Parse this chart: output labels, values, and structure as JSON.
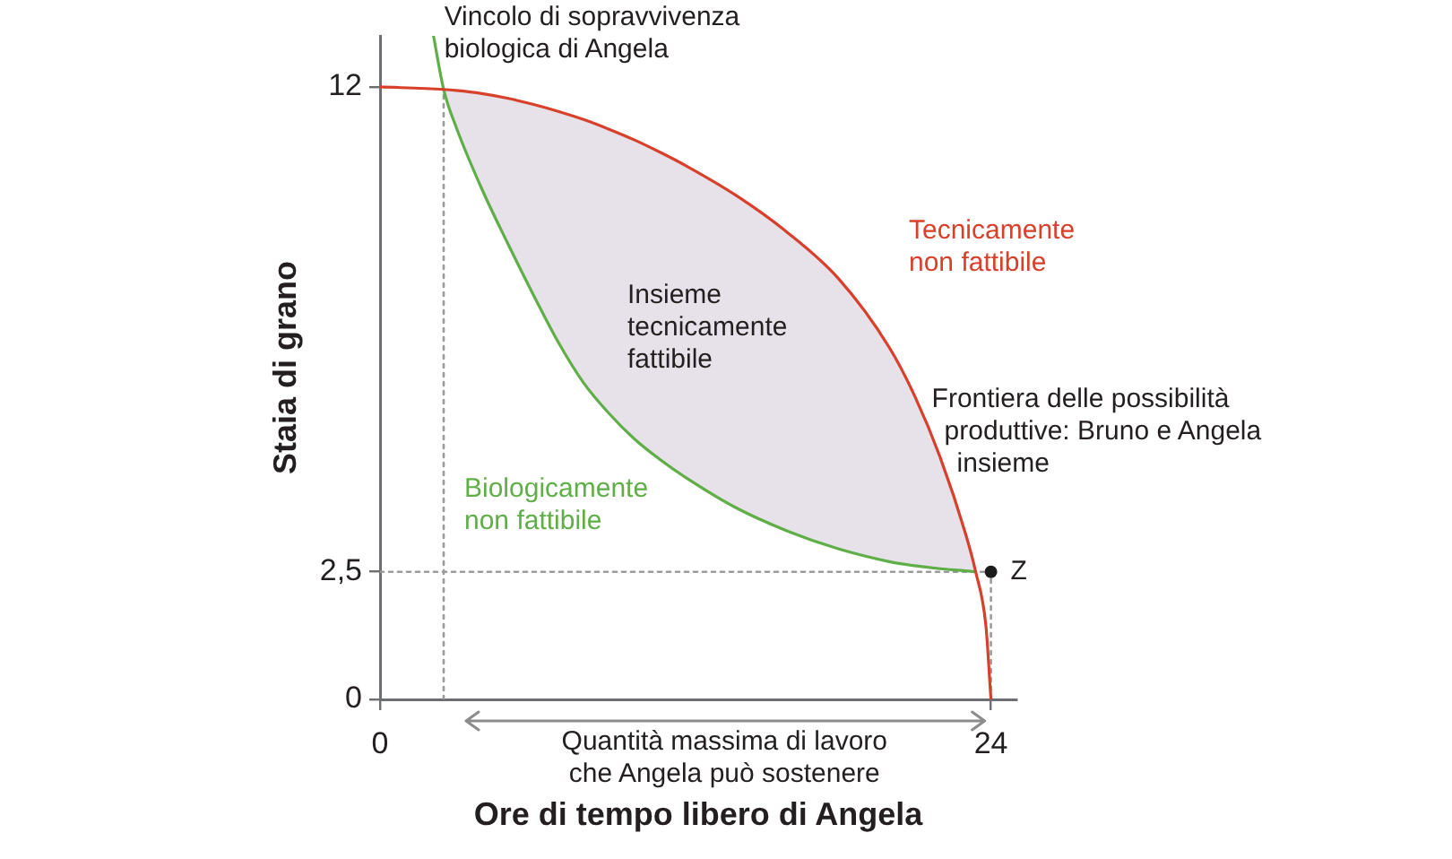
{
  "chart_data": {
    "type": "line",
    "xlabel": "Ore di tempo libero di Angela",
    "ylabel": "Staia di grano",
    "xlim": [
      0,
      25
    ],
    "ylim": [
      0,
      13
    ],
    "xticks": [
      0,
      24
    ],
    "yticks": [
      0,
      {
        "value": 2.5,
        "label": "2,5"
      },
      12
    ],
    "grid": false,
    "legend": false,
    "series": [
      {
        "name": "Frontiera delle possibilità produttive: Bruno e Angela insieme",
        "color": "#d8402b",
        "x": [
          0,
          2.5,
          3,
          4,
          5,
          6,
          7,
          8,
          9,
          10,
          11,
          12,
          14,
          16,
          18,
          20,
          21,
          22,
          23,
          23.4,
          23.8,
          24
        ],
        "values": [
          12,
          11.95,
          11.93,
          11.87,
          11.78,
          11.66,
          11.52,
          11.36,
          11.17,
          10.96,
          10.72,
          10.46,
          9.87,
          9.15,
          8.25,
          6.9,
          5.95,
          4.75,
          3.25,
          2.5,
          1.45,
          0
        ],
        "lower": [
          null,
          11.95,
          11.2,
          10,
          8.95,
          7.95,
          7,
          6.2,
          5.6,
          5.1,
          4.7,
          4.35,
          3.75,
          3.3,
          2.95,
          2.7,
          2.62,
          2.56,
          2.52,
          2.5,
          null,
          null
        ],
        "upper": [
          null,
          11.95,
          11.93,
          11.87,
          11.78,
          11.66,
          11.52,
          11.36,
          11.17,
          10.96,
          10.72,
          10.46,
          9.87,
          9.15,
          8.25,
          6.9,
          5.95,
          4.75,
          3.25,
          2.5,
          null,
          null
        ]
      },
      {
        "name": "Vincolo di sopravvivenza biologica di Angela",
        "color": "#5fae48",
        "x": [
          2.1,
          2.5,
          3,
          4,
          5,
          6,
          7,
          8,
          9,
          10,
          11,
          12,
          14,
          16,
          18,
          20,
          21,
          22,
          23,
          23.4
        ],
        "values": [
          13,
          11.95,
          11.2,
          10,
          8.95,
          7.95,
          7,
          6.2,
          5.6,
          5.1,
          4.7,
          4.35,
          3.75,
          3.3,
          2.95,
          2.7,
          2.62,
          2.56,
          2.52,
          2.5
        ]
      },
      {
        "type": "scatter",
        "name": "Z",
        "color": "#1c1c1c",
        "marker": "circle",
        "x": [
          24
        ],
        "values": [
          2.5
        ]
      },
      {
        "color": "#9b9b9b",
        "line_style": "dotted",
        "x": [
          0,
          24
        ],
        "values": [
          2.5,
          2.5
        ]
      },
      {
        "color": "#9b9b9b",
        "line_style": "dotted",
        "x": [
          24,
          24
        ],
        "values": [
          0,
          2.5
        ]
      },
      {
        "color": "#9b9b9b",
        "line_style": "dotted",
        "x": [
          2.5,
          2.5
        ],
        "values": [
          0,
          11.95
        ]
      }
    ],
    "annotations": [
      "Insieme tecnicamente fattibile",
      "Tecnicamente non fattibile",
      "Biologicamente non fattibile",
      "Quantità massima di lavoro che Angela può sostenere"
    ]
  }
}
